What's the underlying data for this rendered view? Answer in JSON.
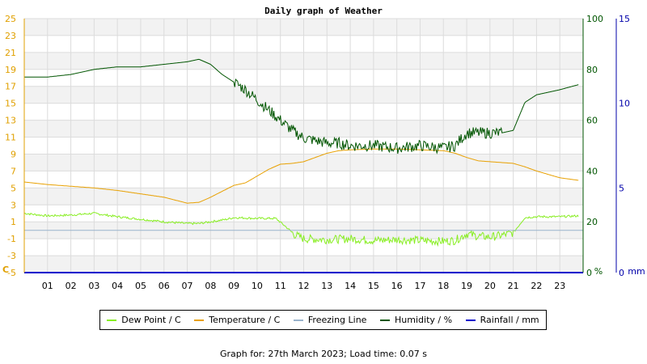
{
  "chart_data": {
    "type": "line",
    "title": "Daily graph of Weather",
    "x_tick_labels": [
      "01",
      "02",
      "03",
      "04",
      "05",
      "06",
      "07",
      "08",
      "09",
      "10",
      "11",
      "12",
      "13",
      "14",
      "15",
      "16",
      "17",
      "18",
      "19",
      "20",
      "21",
      "22",
      "23"
    ],
    "xlim": [
      0,
      24
    ],
    "axes": {
      "left": {
        "label": "C",
        "ylim": [
          -5,
          25
        ],
        "ticks": [
          -5,
          -3,
          -1,
          1,
          3,
          5,
          7,
          9,
          11,
          13,
          15,
          17,
          19,
          21,
          23,
          25
        ],
        "color": "#e0a000"
      },
      "right1": {
        "label": "%",
        "ylim": [
          0,
          100
        ],
        "ticks": [
          0,
          20,
          40,
          60,
          80,
          100
        ],
        "color": "#005500"
      },
      "right2": {
        "label": "mm",
        "ylim": [
          0,
          15
        ],
        "ticks": [
          0,
          5,
          10,
          15
        ],
        "color": "#0000aa"
      }
    },
    "series": [
      {
        "name": "Dew Point / C",
        "axis": "left",
        "color": "#88ee22",
        "x": [
          0,
          1,
          2,
          3,
          4,
          5,
          6,
          7,
          7.5,
          8,
          8.7,
          9,
          10,
          10.8,
          11.2,
          11.6,
          12,
          13,
          14,
          15,
          16,
          17,
          18,
          18.5,
          19,
          19.5,
          20,
          20.5,
          21,
          21.5,
          22,
          23,
          23.8
        ],
        "y": [
          2,
          1.7,
          1.8,
          2,
          1.6,
          1.3,
          1,
          0.8,
          0.8,
          1,
          1.3,
          1.5,
          1.4,
          1.4,
          0.5,
          -0.5,
          -1,
          -1.1,
          -1,
          -1.2,
          -1.1,
          -1.2,
          -1.3,
          -1.2,
          -0.4,
          -0.7,
          -0.8,
          -0.6,
          -0.3,
          1.5,
          1.6,
          1.6,
          1.7
        ]
      },
      {
        "name": "Temperature / C",
        "axis": "left",
        "color": "#e8a000",
        "x": [
          0,
          1,
          2,
          3,
          4,
          5,
          6,
          7,
          7.5,
          8,
          8.5,
          9,
          9.5,
          10,
          10.5,
          11,
          11.5,
          12,
          12.5,
          13,
          13.5,
          14,
          15,
          16,
          17,
          18,
          18.5,
          19,
          19.5,
          20,
          21,
          21.5,
          22,
          23,
          23.8
        ],
        "y": [
          5.7,
          5.4,
          5.2,
          5.0,
          4.7,
          4.3,
          3.9,
          3.2,
          3.3,
          3.9,
          4.6,
          5.3,
          5.6,
          6.4,
          7.2,
          7.8,
          7.9,
          8.1,
          8.6,
          9.1,
          9.4,
          9.5,
          9.6,
          9.6,
          9.5,
          9.4,
          9.1,
          8.6,
          8.2,
          8.1,
          7.9,
          7.5,
          7.0,
          6.2,
          5.9
        ]
      },
      {
        "name": "Freezing Line",
        "axis": "left",
        "color": "#99b3cc",
        "x": [
          0,
          24
        ],
        "y": [
          0,
          0
        ]
      },
      {
        "name": "Humidity / %",
        "axis": "right1",
        "color": "#005500",
        "x": [
          0,
          1,
          2,
          3,
          4,
          5,
          6,
          7,
          7.5,
          8,
          8.5,
          9,
          9.5,
          10,
          10.5,
          11,
          11.5,
          12,
          12.5,
          13,
          13.5,
          14,
          15,
          16,
          17,
          18,
          18.5,
          19,
          19.5,
          20,
          20.5,
          21,
          21.5,
          22,
          22.5,
          23,
          23.8
        ],
        "y": [
          77,
          77,
          78,
          80,
          81,
          81,
          82,
          83,
          84,
          82,
          78,
          75,
          72,
          68,
          64,
          60,
          56,
          53,
          52,
          51,
          51,
          50,
          50,
          49,
          50,
          49,
          50,
          55,
          55,
          55,
          55,
          56,
          67,
          70,
          71,
          72,
          74
        ]
      },
      {
        "name": "Rainfall / mm",
        "axis": "right2",
        "color": "#0000cc",
        "x": [
          0,
          24
        ],
        "y": [
          0,
          0
        ]
      }
    ],
    "grid": true,
    "legend_position": "bottom"
  },
  "footer": "Graph for: 27th March 2023; Load time: 0.07 s"
}
